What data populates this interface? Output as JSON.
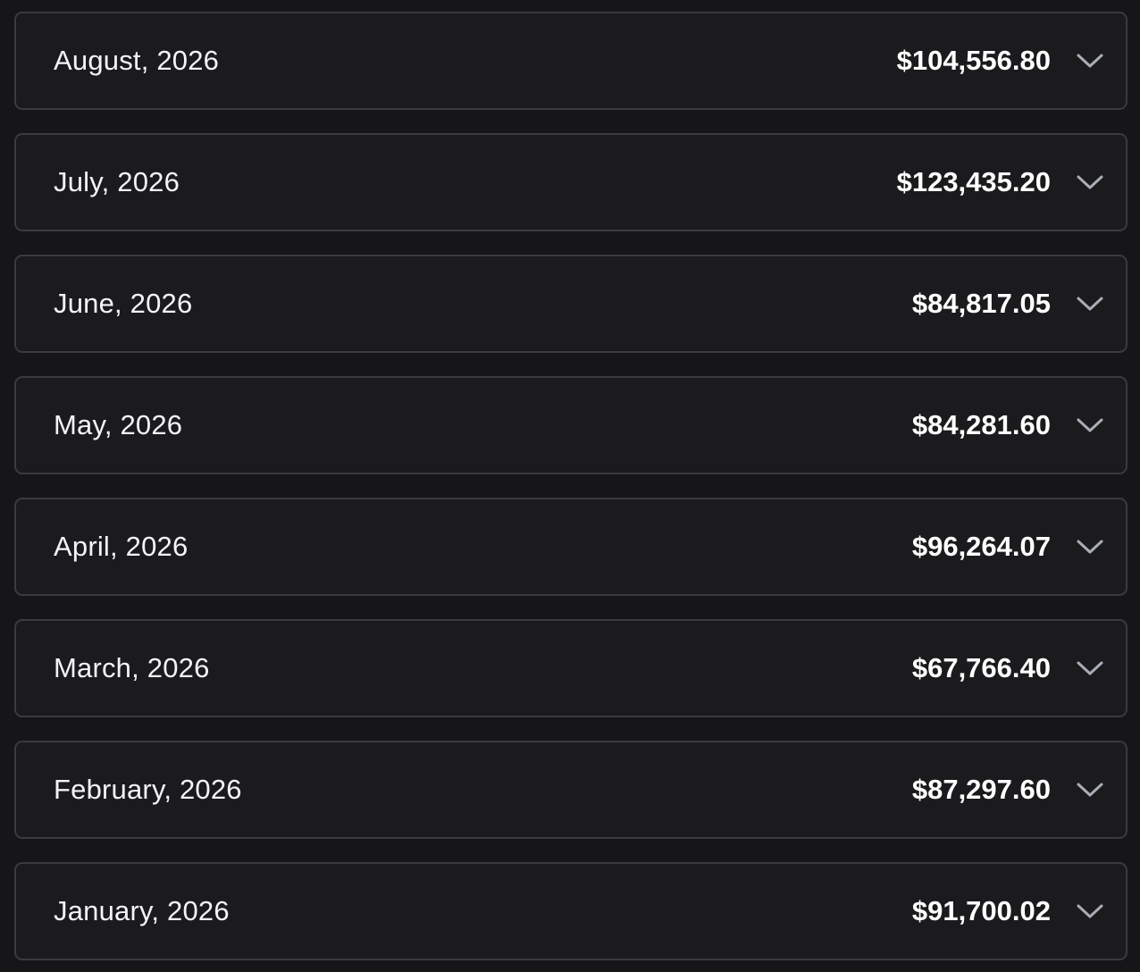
{
  "months": [
    {
      "label": "August, 2026",
      "amount": "$104,556.80"
    },
    {
      "label": "July, 2026",
      "amount": "$123,435.20"
    },
    {
      "label": "June, 2026",
      "amount": "$84,817.05"
    },
    {
      "label": "May, 2026",
      "amount": "$84,281.60"
    },
    {
      "label": "April, 2026",
      "amount": "$96,264.07"
    },
    {
      "label": "March, 2026",
      "amount": "$67,766.40"
    },
    {
      "label": "February, 2026",
      "amount": "$87,297.60"
    },
    {
      "label": "January, 2026",
      "amount": "$91,700.02"
    }
  ],
  "icons": {
    "expand": "chevron-down-icon"
  },
  "colors": {
    "background": "#161618",
    "row_border": "#3a3a3f",
    "text": "#ffffff",
    "chevron": "#a9adb6"
  }
}
